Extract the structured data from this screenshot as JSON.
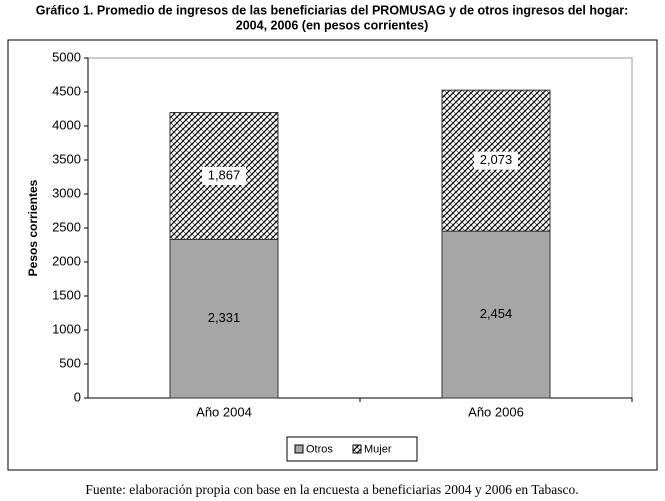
{
  "chart_data": {
    "type": "stacked_bar",
    "title": [
      "Gráfico 1. Promedio de ingresos de las beneficiarias del PROMUSAG y de otros ingresos del hogar:",
      "2004, 2006  (en pesos corrientes)"
    ],
    "ylabel": "Pesos corrientes",
    "categories": [
      "Año 2004",
      "Año 2006"
    ],
    "series": [
      {
        "name": "Otros",
        "color": "#a6a6a6",
        "values": [
          2331,
          2454
        ],
        "value_labels": [
          "2,331",
          "2,454"
        ]
      },
      {
        "name": "Mujer",
        "color": "hatch",
        "values": [
          1867,
          2073
        ],
        "value_labels": [
          "1,867",
          "2,073"
        ]
      }
    ],
    "ylim": [
      0,
      5000
    ],
    "yticks": [
      0,
      500,
      1000,
      1500,
      2000,
      2500,
      3000,
      3500,
      4000,
      4500,
      5000
    ],
    "legend": "bottom",
    "source": "Fuente: elaboración propia con base en la encuesta a beneficiarias 2004 y 2006 en Tabasco."
  }
}
